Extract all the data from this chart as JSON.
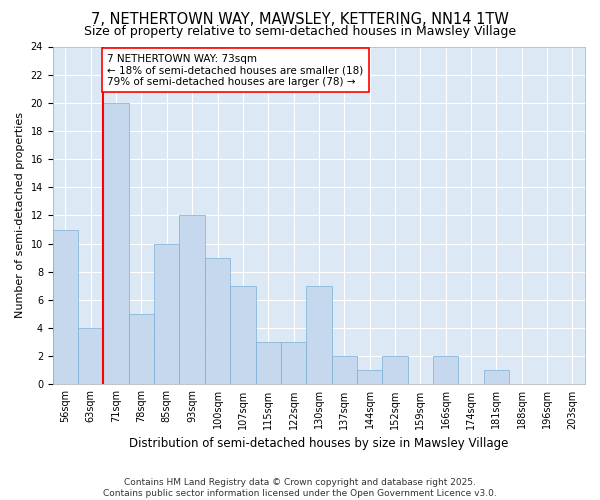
{
  "title": "7, NETHERTOWN WAY, MAWSLEY, KETTERING, NN14 1TW",
  "subtitle": "Size of property relative to semi-detached houses in Mawsley Village",
  "xlabel": "Distribution of semi-detached houses by size in Mawsley Village",
  "ylabel": "Number of semi-detached properties",
  "categories": [
    "56sqm",
    "63sqm",
    "71sqm",
    "78sqm",
    "85sqm",
    "93sqm",
    "100sqm",
    "107sqm",
    "115sqm",
    "122sqm",
    "130sqm",
    "137sqm",
    "144sqm",
    "152sqm",
    "159sqm",
    "166sqm",
    "174sqm",
    "181sqm",
    "188sqm",
    "196sqm",
    "203sqm"
  ],
  "values": [
    11,
    4,
    20,
    5,
    10,
    12,
    9,
    7,
    3,
    3,
    7,
    2,
    1,
    2,
    0,
    2,
    0,
    1,
    0,
    0,
    0
  ],
  "bar_color": "#c5d8ee",
  "bar_edge_color": "#7aaed6",
  "red_line_x": 2.0,
  "annotation_label": "7 NETHERTOWN WAY: 73sqm",
  "annotation_smaller": "← 18% of semi-detached houses are smaller (18)",
  "annotation_larger": "79% of semi-detached houses are larger (78) →",
  "ylim": [
    0,
    24
  ],
  "yticks": [
    0,
    2,
    4,
    6,
    8,
    10,
    12,
    14,
    16,
    18,
    20,
    22,
    24
  ],
  "bg_color": "#dce9f5",
  "footer": "Contains HM Land Registry data © Crown copyright and database right 2025.\nContains public sector information licensed under the Open Government Licence v3.0.",
  "title_fontsize": 10.5,
  "subtitle_fontsize": 9,
  "xlabel_fontsize": 8.5,
  "ylabel_fontsize": 8,
  "tick_fontsize": 7,
  "annotation_fontsize": 7.5,
  "footer_fontsize": 6.5
}
